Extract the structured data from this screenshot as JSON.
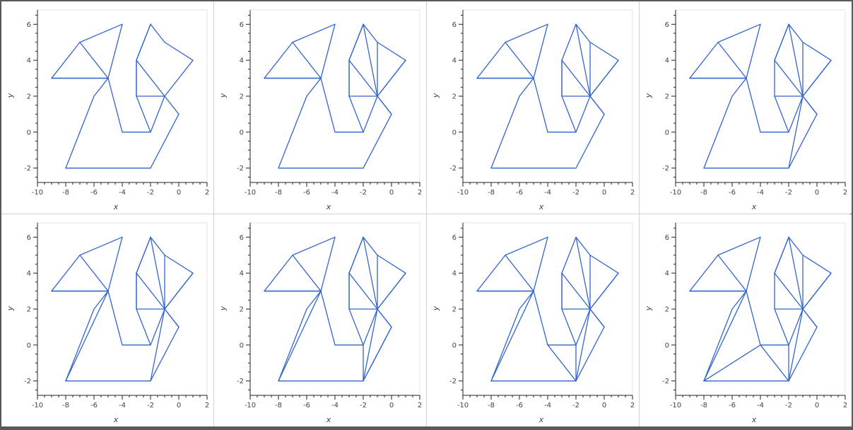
{
  "colors": {
    "line": "#3366cc",
    "axis": "#222222",
    "frame": "#e5e5e5",
    "background": "#ffffff"
  },
  "shared": {
    "vertices": [
      [
        -9,
        3
      ],
      [
        -7,
        5
      ],
      [
        -4,
        6
      ],
      [
        -5,
        3
      ],
      [
        -6,
        2
      ],
      [
        -8,
        -2
      ],
      [
        -2,
        -2
      ],
      [
        0,
        1
      ],
      [
        -1,
        2
      ],
      [
        1,
        4
      ],
      [
        -1,
        5
      ],
      [
        -2,
        6
      ],
      [
        -3,
        4
      ],
      [
        -3,
        2
      ],
      [
        -2,
        0
      ],
      [
        -4,
        0
      ]
    ],
    "outline_edges": [
      [
        0,
        1
      ],
      [
        1,
        2
      ],
      [
        2,
        3
      ],
      [
        3,
        15
      ],
      [
        15,
        14
      ],
      [
        14,
        13
      ],
      [
        13,
        12
      ],
      [
        12,
        11
      ],
      [
        11,
        10
      ],
      [
        10,
        9
      ],
      [
        9,
        8
      ],
      [
        8,
        7
      ],
      [
        7,
        6
      ],
      [
        6,
        5
      ],
      [
        5,
        4
      ],
      [
        4,
        3
      ],
      [
        3,
        0
      ]
    ],
    "base_edges": [
      [
        0,
        3
      ],
      [
        1,
        3
      ],
      [
        12,
        8
      ],
      [
        13,
        8
      ],
      [
        14,
        8
      ]
    ]
  },
  "chart_data": [
    {
      "type": "line",
      "xlabel": "x",
      "ylabel": "y",
      "xlim": [
        -10,
        2
      ],
      "ylim": [
        -2.8,
        6.8
      ],
      "xticks": [
        -10,
        -8,
        -6,
        -4,
        -2,
        0,
        2
      ],
      "yticks": [
        -2,
        0,
        2,
        4,
        6
      ],
      "extra_edges": [
        [
          11,
          12
        ],
        [
          13,
          12
        ]
      ]
    },
    {
      "type": "line",
      "xlabel": "x",
      "ylabel": "y",
      "xlim": [
        -10,
        2
      ],
      "ylim": [
        -2.8,
        6.8
      ],
      "xticks": [
        -10,
        -8,
        -6,
        -4,
        -2,
        0,
        2
      ],
      "yticks": [
        -2,
        0,
        2,
        4,
        6
      ],
      "extra_edges": [
        [
          11,
          8
        ],
        [
          10,
          8
        ],
        [
          9,
          8
        ],
        [
          7,
          8
        ],
        [
          11,
          12
        ],
        [
          13,
          12
        ]
      ]
    },
    {
      "type": "line",
      "xlabel": "x",
      "ylabel": "y",
      "xlim": [
        -10,
        2
      ],
      "ylim": [
        -2.8,
        6.8
      ],
      "xticks": [
        -10,
        -8,
        -6,
        -4,
        -2,
        0,
        2
      ],
      "yticks": [
        -2,
        0,
        2,
        4,
        6
      ],
      "extra_edges": [
        [
          11,
          8
        ],
        [
          10,
          8
        ],
        [
          9,
          8
        ],
        [
          7,
          8
        ],
        [
          13,
          12
        ]
      ]
    },
    {
      "type": "line",
      "xlabel": "x",
      "ylabel": "y",
      "xlim": [
        -10,
        2
      ],
      "ylim": [
        -2.8,
        6.8
      ],
      "xticks": [
        -10,
        -8,
        -6,
        -4,
        -2,
        0,
        2
      ],
      "yticks": [
        -2,
        0,
        2,
        4,
        6
      ],
      "extra_edges": [
        [
          11,
          8
        ],
        [
          10,
          8
        ],
        [
          9,
          8
        ],
        [
          7,
          8
        ],
        [
          6,
          8
        ],
        [
          11,
          12
        ]
      ]
    },
    {
      "type": "line",
      "xlabel": "x",
      "ylabel": "y",
      "xlim": [
        -10,
        2
      ],
      "ylim": [
        -2.8,
        6.8
      ],
      "xticks": [
        -10,
        -8,
        -6,
        -4,
        -2,
        0,
        2
      ],
      "yticks": [
        -2,
        0,
        2,
        4,
        6
      ],
      "extra_edges": [
        [
          11,
          8
        ],
        [
          10,
          8
        ],
        [
          9,
          8
        ],
        [
          7,
          8
        ],
        [
          6,
          8
        ],
        [
          11,
          12
        ],
        [
          13,
          12
        ],
        [
          3,
          5
        ]
      ]
    },
    {
      "type": "line",
      "xlabel": "x",
      "ylabel": "y",
      "xlim": [
        -10,
        2
      ],
      "ylim": [
        -2.8,
        6.8
      ],
      "xticks": [
        -10,
        -8,
        -6,
        -4,
        -2,
        0,
        2
      ],
      "yticks": [
        -2,
        0,
        2,
        4,
        6
      ],
      "extra_edges": [
        [
          11,
          8
        ],
        [
          10,
          8
        ],
        [
          9,
          8
        ],
        [
          7,
          8
        ],
        [
          6,
          8
        ],
        [
          11,
          12
        ],
        [
          13,
          12
        ],
        [
          3,
          5
        ],
        [
          14,
          6
        ],
        [
          7,
          6
        ]
      ]
    },
    {
      "type": "line",
      "xlabel": "x",
      "ylabel": "y",
      "xlim": [
        -10,
        2
      ],
      "ylim": [
        -2.8,
        6.8
      ],
      "xticks": [
        -10,
        -8,
        -6,
        -4,
        -2,
        0,
        2
      ],
      "yticks": [
        -2,
        0,
        2,
        4,
        6
      ],
      "extra_edges": [
        [
          11,
          8
        ],
        [
          10,
          8
        ],
        [
          9,
          8
        ],
        [
          7,
          8
        ],
        [
          6,
          8
        ],
        [
          13,
          12
        ],
        [
          3,
          5
        ],
        [
          14,
          6
        ],
        [
          15,
          6
        ]
      ]
    },
    {
      "type": "line",
      "xlabel": "x",
      "ylabel": "y",
      "xlim": [
        -10,
        2
      ],
      "ylim": [
        -2.8,
        6.8
      ],
      "xticks": [
        -10,
        -8,
        -6,
        -4,
        -2,
        0,
        2
      ],
      "yticks": [
        -2,
        0,
        2,
        4,
        6
      ],
      "extra_edges": [
        [
          11,
          8
        ],
        [
          10,
          8
        ],
        [
          9,
          8
        ],
        [
          7,
          8
        ],
        [
          6,
          8
        ],
        [
          11,
          12
        ],
        [
          3,
          5
        ],
        [
          15,
          5
        ],
        [
          15,
          6
        ],
        [
          14,
          6
        ]
      ]
    }
  ]
}
